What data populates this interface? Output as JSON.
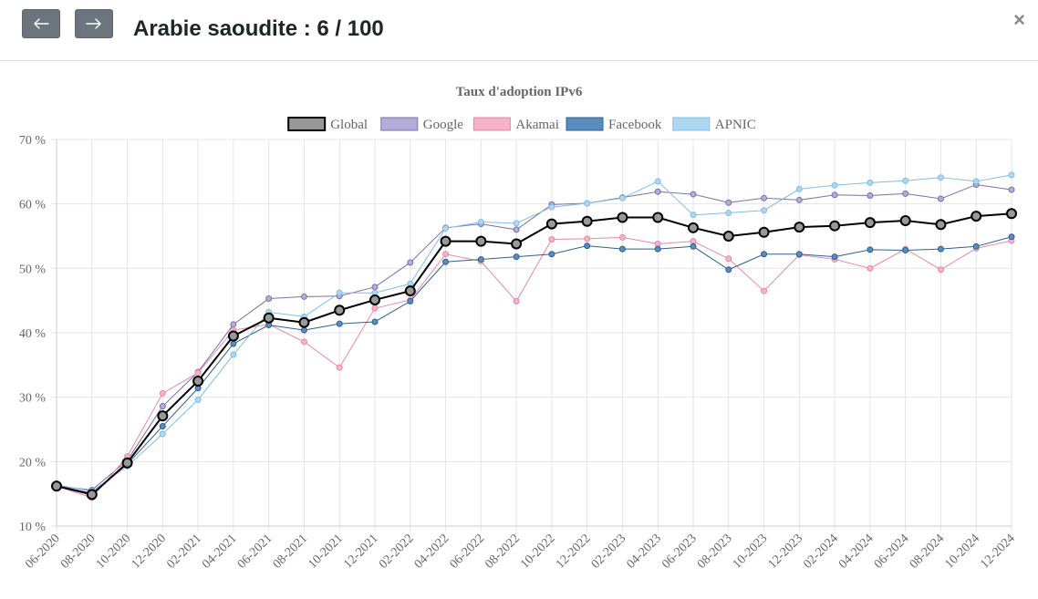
{
  "header": {
    "prev_icon": "arrow-left-icon",
    "next_icon": "arrow-right-icon",
    "title": "Arabie saoudite : 6 / 100",
    "close_label": "×"
  },
  "chart_data": {
    "type": "line",
    "title": "Taux d'adoption IPv6",
    "xlabel": "",
    "ylabel": "",
    "ylim": [
      10,
      70
    ],
    "yticks": [
      "10 %",
      "20 %",
      "30 %",
      "40 %",
      "50 %",
      "60 %",
      "70 %"
    ],
    "grid": true,
    "legend_position": "top",
    "categories": [
      "06-2020",
      "08-2020",
      "10-2020",
      "12-2020",
      "02-2021",
      "04-2021",
      "06-2021",
      "08-2021",
      "10-2021",
      "12-2021",
      "02-2022",
      "04-2022",
      "06-2022",
      "08-2022",
      "10-2022",
      "12-2022",
      "02-2023",
      "04-2023",
      "06-2023",
      "08-2023",
      "10-2023",
      "12-2023",
      "02-2024",
      "04-2024",
      "06-2024",
      "08-2024",
      "10-2024",
      "12-2024"
    ],
    "series": [
      {
        "name": "Global",
        "color": "#000000",
        "fill": "#999999",
        "values": [
          16.2,
          14.9,
          19.8,
          27.1,
          32.5,
          39.5,
          42.3,
          41.6,
          43.5,
          45.1,
          46.5,
          54.2,
          54.2,
          53.8,
          56.9,
          57.3,
          57.9,
          57.9,
          56.3,
          55.0,
          55.6,
          56.4,
          56.6,
          57.1,
          57.4,
          56.8,
          58.1,
          58.5
        ]
      },
      {
        "name": "Google",
        "color": "#7d6fa9",
        "fill": "#b3acd9",
        "values": [
          16.2,
          15.6,
          20.2,
          28.6,
          33.9,
          41.3,
          45.3,
          45.6,
          45.7,
          47.1,
          50.9,
          56.3,
          56.9,
          56.0,
          59.9,
          60.1,
          61.0,
          61.9,
          61.5,
          60.2,
          60.9,
          60.6,
          61.4,
          61.3,
          61.6,
          60.8,
          63.0,
          62.2
        ]
      },
      {
        "name": "Akamai",
        "color": "#e389a8",
        "fill": "#f4b3c8",
        "values": [
          16.2,
          14.4,
          20.8,
          30.6,
          33.8,
          40.4,
          41.3,
          38.6,
          34.6,
          43.8,
          45.1,
          52.2,
          51.1,
          44.9,
          54.5,
          54.6,
          54.8,
          53.8,
          54.2,
          51.5,
          46.5,
          52.1,
          51.4,
          50.0,
          53.0,
          49.8,
          53.1,
          54.3
        ]
      },
      {
        "name": "Facebook",
        "color": "#2e5f8f",
        "fill": "#5b8cbf",
        "values": [
          16.3,
          15.1,
          19.6,
          25.5,
          31.4,
          38.3,
          41.2,
          40.4,
          41.4,
          41.7,
          44.9,
          51.0,
          51.4,
          51.8,
          52.2,
          53.5,
          53.0,
          53.0,
          53.4,
          49.8,
          52.2,
          52.2,
          51.8,
          52.9,
          52.8,
          53.0,
          53.4,
          54.9
        ]
      },
      {
        "name": "APNIC",
        "color": "#7fbde4",
        "fill": "#aed8f2",
        "values": [
          16.4,
          15.4,
          19.3,
          24.3,
          29.6,
          36.6,
          43.2,
          42.5,
          46.2,
          46.2,
          47.6,
          56.2,
          57.2,
          57.0,
          59.5,
          60.1,
          60.9,
          63.5,
          58.3,
          58.6,
          59.0,
          62.3,
          62.9,
          63.3,
          63.6,
          64.1,
          63.5,
          64.5
        ]
      }
    ]
  }
}
